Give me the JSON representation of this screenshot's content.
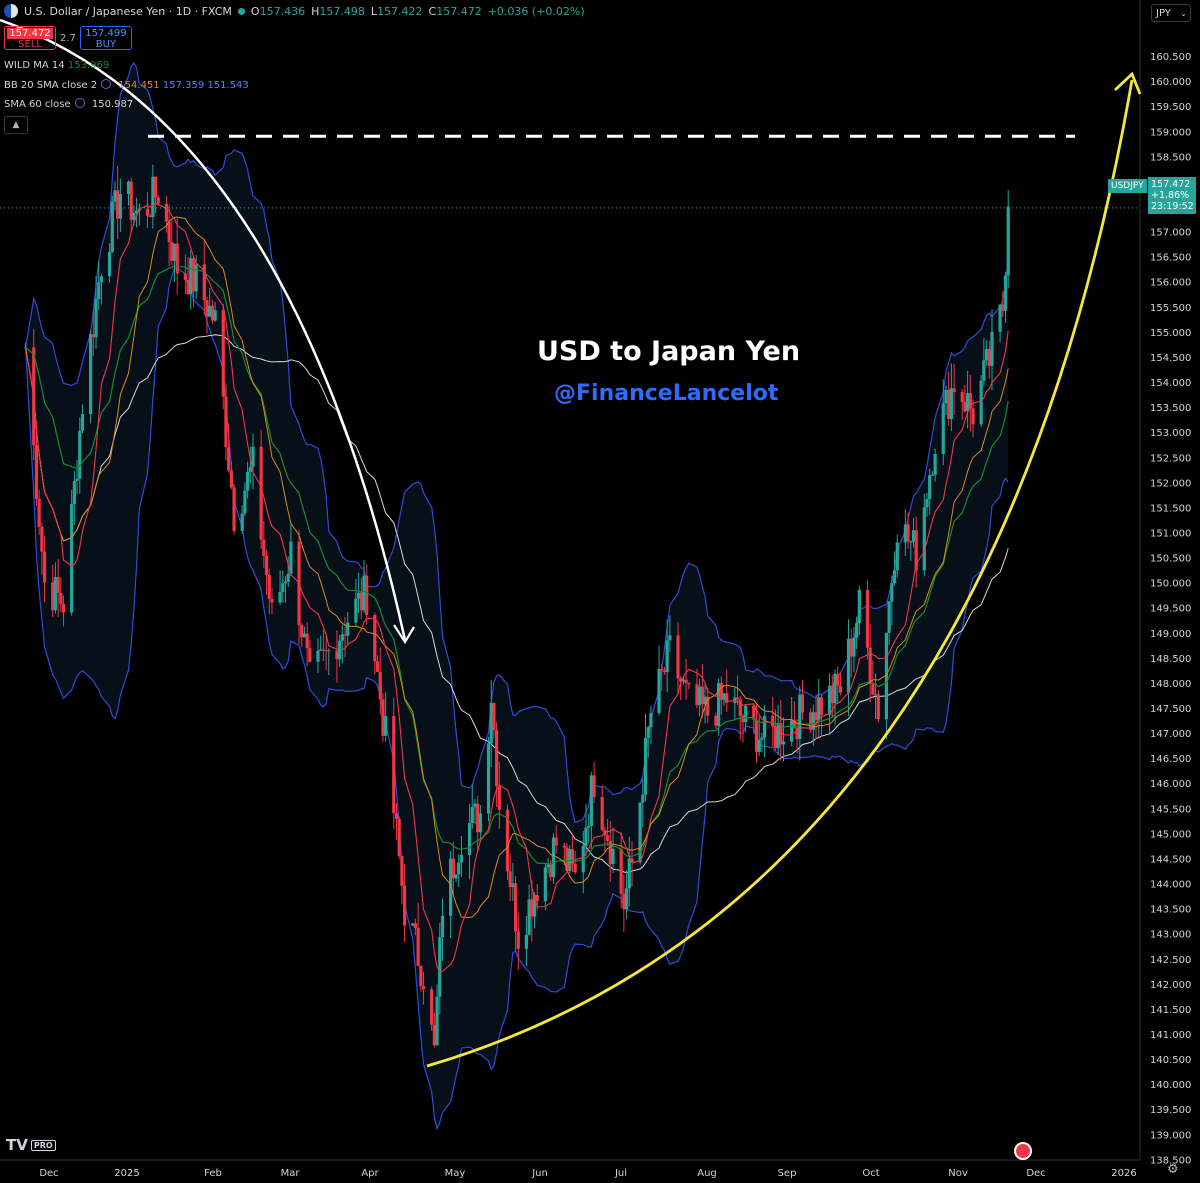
{
  "header": {
    "symbol_title": "U.S. Dollar / Japanese Yen · 1D · FXCM",
    "o_label": "O",
    "o": "157.436",
    "h_label": "H",
    "h": "157.498",
    "l_label": "L",
    "l": "157.422",
    "c_label": "C",
    "c": "157.472",
    "change": "+0.036 (+0.02%)"
  },
  "trade": {
    "sell_price": "157.472",
    "sell_label": "SELL",
    "spread": "2.7",
    "buy_price": "157.499",
    "buy_label": "BUY"
  },
  "indicators": {
    "wild_label": "WILD MA 14",
    "wild_value": "153.969",
    "bb_label": "BB 20 SMA close 2",
    "bb_basis": "154.451",
    "bb_upper": "157.359",
    "bb_lower": "151.543",
    "sma_label": "SMA 60 close",
    "sma_value": "150.987"
  },
  "currency_selector": "JPY",
  "price_tag": {
    "symbol": "USDJPY",
    "price": "157.472",
    "change_pct": "+1.86%",
    "countdown": "23:19:52"
  },
  "annotations": {
    "title": "USD to Japan Yen",
    "handle": "@FinanceLancelot"
  },
  "logo_text": "TV",
  "logo_badge": "PRO",
  "colors": {
    "up": "#26a69a",
    "down": "#f23645",
    "bb": "#2f4bd8",
    "sma60": "#d8d8d8",
    "wild": "#1b8a2e",
    "basis": "#d98a1c",
    "arc": "#f5e83a",
    "arrow": "#ffffff"
  },
  "chart_data": {
    "type": "candlestick",
    "y_range": [
      138.25,
      160.75
    ],
    "y_ticks": [
      "160.500",
      "160.000",
      "159.500",
      "159.000",
      "158.500",
      "158.000",
      "157.500",
      "157.000",
      "156.500",
      "156.000",
      "155.500",
      "155.000",
      "154.500",
      "154.000",
      "153.500",
      "153.000",
      "152.500",
      "152.000",
      "151.500",
      "151.000",
      "150.500",
      "150.000",
      "149.500",
      "149.000",
      "148.500",
      "148.000",
      "147.500",
      "147.000",
      "146.500",
      "146.000",
      "145.500",
      "145.000",
      "144.500",
      "144.000",
      "143.500",
      "143.000",
      "142.500",
      "142.000",
      "141.500",
      "141.000",
      "140.500",
      "140.000",
      "139.500",
      "139.000",
      "138.500"
    ],
    "x_labels": [
      "Dec",
      "2025",
      "Feb",
      "Mar",
      "Apr",
      "May",
      "Jun",
      "Jul",
      "Aug",
      "Sep",
      "Oct",
      "Nov",
      "Dec",
      "2026"
    ],
    "closes": [
      {
        "date": "2024-11-22",
        "close": 154.7
      },
      {
        "date": "2024-11-29",
        "close": 150.0
      },
      {
        "date": "2024-12-06",
        "close": 149.6
      },
      {
        "date": "2024-12-13",
        "close": 153.6
      },
      {
        "date": "2024-12-20",
        "close": 156.4
      },
      {
        "date": "2024-12-27",
        "close": 157.8
      },
      {
        "date": "2025-01-03",
        "close": 157.3
      },
      {
        "date": "2025-01-10",
        "close": 157.8
      },
      {
        "date": "2025-01-17",
        "close": 156.3
      },
      {
        "date": "2025-01-24",
        "close": 156.0
      },
      {
        "date": "2025-01-31",
        "close": 155.2
      },
      {
        "date": "2025-02-07",
        "close": 151.4
      },
      {
        "date": "2025-02-14",
        "close": 152.3
      },
      {
        "date": "2025-02-21",
        "close": 149.3
      },
      {
        "date": "2025-02-28",
        "close": 150.6
      },
      {
        "date": "2025-03-07",
        "close": 148.0
      },
      {
        "date": "2025-03-14",
        "close": 148.6
      },
      {
        "date": "2025-03-21",
        "close": 149.3
      },
      {
        "date": "2025-03-28",
        "close": 149.8
      },
      {
        "date": "2025-04-04",
        "close": 146.9
      },
      {
        "date": "2025-04-11",
        "close": 143.5
      },
      {
        "date": "2025-04-18",
        "close": 142.2
      },
      {
        "date": "2025-04-22",
        "close": 140.6
      },
      {
        "date": "2025-04-25",
        "close": 143.6
      },
      {
        "date": "2025-05-02",
        "close": 145.0
      },
      {
        "date": "2025-05-09",
        "close": 145.4
      },
      {
        "date": "2025-05-13",
        "close": 147.8
      },
      {
        "date": "2025-05-16",
        "close": 145.6
      },
      {
        "date": "2025-05-23",
        "close": 143.0
      },
      {
        "date": "2025-05-30",
        "close": 144.0
      },
      {
        "date": "2025-06-06",
        "close": 144.8
      },
      {
        "date": "2025-06-13",
        "close": 144.1
      },
      {
        "date": "2025-06-20",
        "close": 146.1
      },
      {
        "date": "2025-06-27",
        "close": 144.6
      },
      {
        "date": "2025-07-01",
        "close": 143.6
      },
      {
        "date": "2025-07-04",
        "close": 144.4
      },
      {
        "date": "2025-07-11",
        "close": 147.4
      },
      {
        "date": "2025-07-18",
        "close": 148.6
      },
      {
        "date": "2025-07-25",
        "close": 147.6
      },
      {
        "date": "2025-08-01",
        "close": 147.4
      },
      {
        "date": "2025-08-08",
        "close": 147.7
      },
      {
        "date": "2025-08-15",
        "close": 147.2
      },
      {
        "date": "2025-08-22",
        "close": 146.9
      },
      {
        "date": "2025-08-29",
        "close": 147.1
      },
      {
        "date": "2025-09-05",
        "close": 147.4
      },
      {
        "date": "2025-09-12",
        "close": 147.6
      },
      {
        "date": "2025-09-19",
        "close": 147.9
      },
      {
        "date": "2025-09-26",
        "close": 149.5
      },
      {
        "date": "2025-10-03",
        "close": 147.5
      },
      {
        "date": "2025-10-10",
        "close": 151.2
      },
      {
        "date": "2025-10-17",
        "close": 150.6
      },
      {
        "date": "2025-10-24",
        "close": 152.9
      },
      {
        "date": "2025-10-31",
        "close": 154.0
      },
      {
        "date": "2025-11-07",
        "close": 153.4
      },
      {
        "date": "2025-11-14",
        "close": 154.6
      },
      {
        "date": "2025-11-18",
        "close": 155.5
      },
      {
        "date": "2025-11-20",
        "close": 157.5
      }
    ],
    "horizontal_level": 158.9,
    "last_price": 157.472
  }
}
